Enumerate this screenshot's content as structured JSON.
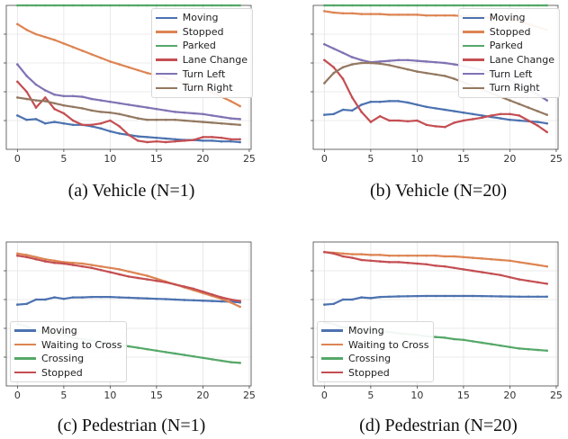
{
  "figure": {
    "captions": [
      "(a) Vehicle (N=1)",
      "(b) Vehicle (N=20)",
      "(c) Pedestrian (N=1)",
      "(d) Pedestrian (N=20)"
    ]
  },
  "colors": {
    "blue": "#4c72b0",
    "orange": "#dd8452",
    "green": "#55a868",
    "red": "#c44e52",
    "purple": "#8172b3",
    "brown": "#937860"
  },
  "chart_data": [
    {
      "type": "line",
      "title": "(a) Vehicle (N=1)",
      "xlabel": "",
      "ylabel": "",
      "xlim": [
        -1.2,
        25.2
      ],
      "ylim": [
        0,
        1
      ],
      "xticks": [
        0,
        5,
        10,
        15,
        20,
        25
      ],
      "grid": true,
      "legend": "top-right",
      "x": [
        0,
        1,
        2,
        3,
        4,
        5,
        6,
        7,
        8,
        9,
        10,
        11,
        12,
        13,
        14,
        15,
        16,
        17,
        18,
        19,
        20,
        21,
        22,
        23,
        24
      ],
      "series": [
        {
          "name": "Moving",
          "color": "#4c72b0",
          "values": [
            0.235,
            0.205,
            0.21,
            0.18,
            0.19,
            0.18,
            0.17,
            0.17,
            0.16,
            0.145,
            0.125,
            0.11,
            0.1,
            0.09,
            0.085,
            0.08,
            0.075,
            0.07,
            0.065,
            0.065,
            0.06,
            0.06,
            0.055,
            0.055,
            0.05
          ]
        },
        {
          "name": "Stopped",
          "color": "#dd8452",
          "values": [
            0.87,
            0.83,
            0.8,
            0.78,
            0.76,
            0.735,
            0.71,
            0.685,
            0.66,
            0.635,
            0.61,
            0.59,
            0.57,
            0.55,
            0.53,
            0.515,
            0.495,
            0.475,
            0.455,
            0.435,
            0.415,
            0.395,
            0.365,
            0.335,
            0.3
          ]
        },
        {
          "name": "Parked",
          "color": "#55a868",
          "values": [
            1.0,
            1.0,
            1.0,
            1.0,
            1.0,
            1.0,
            1.0,
            1.0,
            1.0,
            1.0,
            1.0,
            1.0,
            1.0,
            1.0,
            1.0,
            1.0,
            1.0,
            1.0,
            1.0,
            1.0,
            1.0,
            1.0,
            1.0,
            1.0,
            1.0
          ]
        },
        {
          "name": "Lane Change",
          "color": "#c44e52",
          "values": [
            0.47,
            0.4,
            0.29,
            0.36,
            0.28,
            0.25,
            0.2,
            0.17,
            0.17,
            0.18,
            0.2,
            0.16,
            0.1,
            0.06,
            0.05,
            0.055,
            0.05,
            0.055,
            0.06,
            0.065,
            0.085,
            0.085,
            0.08,
            0.07,
            0.07
          ]
        },
        {
          "name": "Turn Left",
          "color": "#8172b3",
          "values": [
            0.59,
            0.51,
            0.45,
            0.41,
            0.38,
            0.37,
            0.37,
            0.365,
            0.35,
            0.34,
            0.33,
            0.32,
            0.31,
            0.3,
            0.29,
            0.28,
            0.27,
            0.26,
            0.255,
            0.25,
            0.245,
            0.235,
            0.225,
            0.215,
            0.21
          ]
        },
        {
          "name": "Turn Right",
          "color": "#937860",
          "values": [
            0.36,
            0.35,
            0.34,
            0.335,
            0.32,
            0.305,
            0.295,
            0.285,
            0.27,
            0.26,
            0.255,
            0.245,
            0.23,
            0.215,
            0.205,
            0.205,
            0.205,
            0.205,
            0.2,
            0.195,
            0.19,
            0.185,
            0.18,
            0.175,
            0.17
          ]
        }
      ]
    },
    {
      "type": "line",
      "title": "(b) Vehicle (N=20)",
      "xlabel": "",
      "ylabel": "",
      "xlim": [
        -1.2,
        25.2
      ],
      "ylim": [
        0,
        1
      ],
      "xticks": [
        0,
        5,
        10,
        15,
        20,
        25
      ],
      "grid": true,
      "legend": "top-right",
      "x": [
        0,
        1,
        2,
        3,
        4,
        5,
        6,
        7,
        8,
        9,
        10,
        11,
        12,
        13,
        14,
        15,
        16,
        17,
        18,
        19,
        20,
        21,
        22,
        23,
        24
      ],
      "series": [
        {
          "name": "Moving",
          "color": "#4c72b0",
          "values": [
            0.24,
            0.245,
            0.275,
            0.27,
            0.31,
            0.33,
            0.33,
            0.335,
            0.335,
            0.325,
            0.31,
            0.295,
            0.285,
            0.275,
            0.265,
            0.255,
            0.245,
            0.235,
            0.225,
            0.215,
            0.205,
            0.2,
            0.195,
            0.19,
            0.18
          ]
        },
        {
          "name": "Stopped",
          "color": "#dd8452",
          "values": [
            0.96,
            0.95,
            0.945,
            0.945,
            0.94,
            0.94,
            0.94,
            0.935,
            0.935,
            0.935,
            0.935,
            0.93,
            0.93,
            0.93,
            0.93,
            0.925,
            0.925,
            0.92,
            0.915,
            0.91,
            0.9,
            0.89,
            0.87,
            0.85,
            0.83
          ]
        },
        {
          "name": "Parked",
          "color": "#55a868",
          "values": [
            1.0,
            1.0,
            1.0,
            1.0,
            1.0,
            1.0,
            1.0,
            1.0,
            1.0,
            1.0,
            1.0,
            1.0,
            1.0,
            1.0,
            1.0,
            1.0,
            1.0,
            1.0,
            1.0,
            1.0,
            1.0,
            1.0,
            1.0,
            1.0,
            1.0
          ]
        },
        {
          "name": "Lane Change",
          "color": "#c44e52",
          "values": [
            0.62,
            0.57,
            0.49,
            0.36,
            0.26,
            0.19,
            0.23,
            0.2,
            0.2,
            0.195,
            0.2,
            0.17,
            0.16,
            0.155,
            0.185,
            0.2,
            0.21,
            0.22,
            0.235,
            0.245,
            0.245,
            0.235,
            0.2,
            0.165,
            0.12
          ]
        },
        {
          "name": "Turn Left",
          "color": "#8172b3",
          "values": [
            0.73,
            0.7,
            0.67,
            0.64,
            0.62,
            0.605,
            0.61,
            0.615,
            0.62,
            0.62,
            0.615,
            0.61,
            0.605,
            0.6,
            0.59,
            0.58,
            0.565,
            0.55,
            0.53,
            0.505,
            0.48,
            0.45,
            0.415,
            0.38,
            0.34
          ]
        },
        {
          "name": "Turn Right",
          "color": "#937860",
          "values": [
            0.46,
            0.53,
            0.57,
            0.59,
            0.6,
            0.6,
            0.595,
            0.585,
            0.57,
            0.555,
            0.54,
            0.53,
            0.52,
            0.51,
            0.49,
            0.465,
            0.44,
            0.415,
            0.39,
            0.365,
            0.34,
            0.315,
            0.29,
            0.265,
            0.24
          ]
        }
      ]
    },
    {
      "type": "line",
      "title": "(c) Pedestrian (N=1)",
      "xlabel": "",
      "ylabel": "",
      "xlim": [
        -1.2,
        25.2
      ],
      "ylim": [
        0,
        1
      ],
      "xticks": [
        0,
        5,
        10,
        15,
        20,
        25
      ],
      "grid": true,
      "legend": "bottom-left",
      "x": [
        0,
        1,
        2,
        3,
        4,
        5,
        6,
        7,
        8,
        9,
        10,
        11,
        12,
        13,
        14,
        15,
        16,
        17,
        18,
        19,
        20,
        21,
        22,
        23,
        24
      ],
      "series": [
        {
          "name": "Moving",
          "color": "#4c72b0",
          "values": [
            0.565,
            0.57,
            0.6,
            0.6,
            0.615,
            0.605,
            0.615,
            0.615,
            0.618,
            0.618,
            0.618,
            0.615,
            0.613,
            0.61,
            0.608,
            0.605,
            0.603,
            0.6,
            0.597,
            0.595,
            0.592,
            0.59,
            0.587,
            0.585,
            0.58
          ]
        },
        {
          "name": "Waiting to Cross",
          "color": "#dd8452",
          "values": [
            0.92,
            0.91,
            0.895,
            0.88,
            0.87,
            0.86,
            0.855,
            0.85,
            0.84,
            0.83,
            0.82,
            0.81,
            0.795,
            0.78,
            0.765,
            0.745,
            0.725,
            0.705,
            0.685,
            0.665,
            0.645,
            0.625,
            0.605,
            0.58,
            0.55
          ]
        },
        {
          "name": "Crossing",
          "color": "#55a868",
          "values": [
            0.43,
            0.415,
            0.38,
            0.375,
            0.355,
            0.355,
            0.335,
            0.325,
            0.315,
            0.305,
            0.295,
            0.285,
            0.275,
            0.265,
            0.255,
            0.245,
            0.235,
            0.225,
            0.215,
            0.205,
            0.195,
            0.185,
            0.175,
            0.165,
            0.16
          ]
        },
        {
          "name": "Stopped",
          "color": "#c44e52",
          "values": [
            0.905,
            0.895,
            0.88,
            0.865,
            0.855,
            0.85,
            0.84,
            0.83,
            0.82,
            0.805,
            0.79,
            0.775,
            0.76,
            0.75,
            0.74,
            0.73,
            0.72,
            0.705,
            0.69,
            0.675,
            0.655,
            0.635,
            0.615,
            0.6,
            0.59
          ]
        }
      ]
    },
    {
      "type": "line",
      "title": "(d) Pedestrian (N=20)",
      "xlabel": "",
      "ylabel": "",
      "xlim": [
        -1.2,
        25.2
      ],
      "ylim": [
        0,
        1
      ],
      "xticks": [
        0,
        5,
        10,
        15,
        20,
        25
      ],
      "grid": true,
      "legend": "bottom-left",
      "x": [
        0,
        1,
        2,
        3,
        4,
        5,
        6,
        7,
        8,
        9,
        10,
        11,
        12,
        13,
        14,
        15,
        16,
        17,
        18,
        19,
        20,
        21,
        22,
        23,
        24
      ],
      "series": [
        {
          "name": "Moving",
          "color": "#4c72b0",
          "values": [
            0.565,
            0.57,
            0.6,
            0.6,
            0.615,
            0.61,
            0.618,
            0.62,
            0.622,
            0.623,
            0.624,
            0.625,
            0.625,
            0.625,
            0.625,
            0.625,
            0.625,
            0.624,
            0.623,
            0.622,
            0.621,
            0.62,
            0.62,
            0.62,
            0.62
          ]
        },
        {
          "name": "Waiting to Cross",
          "color": "#dd8452",
          "values": [
            0.93,
            0.925,
            0.92,
            0.915,
            0.915,
            0.91,
            0.91,
            0.905,
            0.905,
            0.905,
            0.905,
            0.905,
            0.905,
            0.9,
            0.9,
            0.895,
            0.89,
            0.885,
            0.88,
            0.875,
            0.87,
            0.86,
            0.85,
            0.84,
            0.83
          ]
        },
        {
          "name": "Crossing",
          "color": "#55a868",
          "values": [
            0.44,
            0.43,
            0.405,
            0.41,
            0.395,
            0.4,
            0.38,
            0.375,
            0.365,
            0.36,
            0.355,
            0.345,
            0.34,
            0.335,
            0.325,
            0.32,
            0.31,
            0.3,
            0.29,
            0.28,
            0.27,
            0.26,
            0.255,
            0.25,
            0.245
          ]
        },
        {
          "name": "Stopped",
          "color": "#c44e52",
          "values": [
            0.93,
            0.92,
            0.9,
            0.89,
            0.875,
            0.87,
            0.865,
            0.86,
            0.86,
            0.855,
            0.85,
            0.845,
            0.835,
            0.83,
            0.82,
            0.81,
            0.8,
            0.79,
            0.78,
            0.77,
            0.755,
            0.74,
            0.73,
            0.72,
            0.71
          ]
        }
      ]
    }
  ]
}
